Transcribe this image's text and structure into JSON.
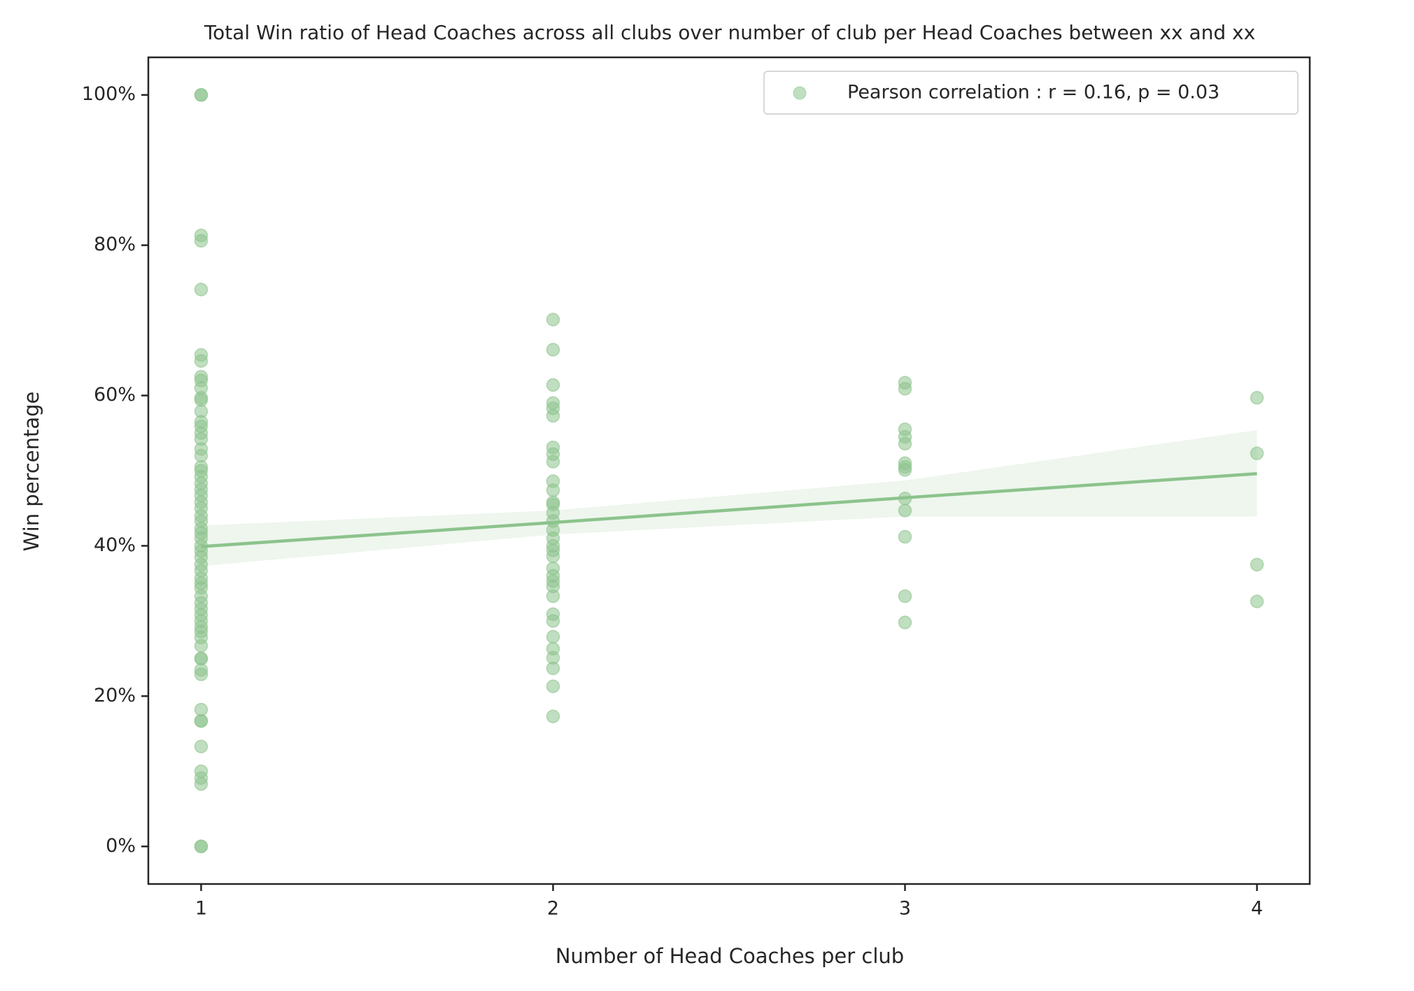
{
  "chart_data": {
    "type": "scatter",
    "title": "Total Win ratio of Head Coaches across all clubs over number of club per Head Coaches between xx and xx",
    "x_label": "Number of Head Coaches per club",
    "y_label": "Win percentage",
    "xlim": [
      0.85,
      4.15
    ],
    "ylim": [
      -5,
      105
    ],
    "xticks": [
      1,
      2,
      3,
      4
    ],
    "yticks": [
      {
        "value": 0,
        "label": "0%"
      },
      {
        "value": 20,
        "label": "20%"
      },
      {
        "value": 40,
        "label": "40%"
      },
      {
        "value": 60,
        "label": "60%"
      },
      {
        "value": 80,
        "label": "80%"
      },
      {
        "value": 100,
        "label": "100%"
      }
    ],
    "grid": false,
    "legend": "upper right",
    "series": [
      {
        "name": "Pearson correlation : r = 0.16, p = 0.03",
        "color": "#8cc38c",
        "x": [
          1,
          1,
          1,
          1,
          1,
          1,
          1,
          1,
          1,
          1,
          1,
          1,
          1,
          1,
          1,
          1,
          1,
          1,
          1,
          1,
          1,
          1,
          1,
          1,
          1,
          1,
          1,
          1,
          1,
          1,
          1,
          1,
          1,
          1,
          1,
          1,
          1,
          1,
          1,
          1,
          1,
          1,
          1,
          1,
          1,
          1,
          1,
          1,
          1,
          1,
          1,
          1,
          1,
          1,
          1,
          1,
          1,
          1,
          1,
          1,
          1,
          1,
          2,
          2,
          2,
          2,
          2,
          2,
          2,
          2,
          2,
          2,
          2,
          2,
          2,
          2,
          2,
          2,
          2,
          2,
          2,
          2,
          2,
          2,
          2,
          2,
          2,
          2,
          2,
          2,
          2,
          2,
          2,
          2,
          2,
          3,
          3,
          3,
          3,
          3,
          3,
          3,
          3,
          3,
          3,
          3,
          3,
          3,
          4,
          4,
          4,
          4
        ],
        "values": [
          100,
          100,
          81.3,
          80.6,
          74.1,
          65.4,
          64.6,
          62.5,
          62,
          61,
          59.7,
          59.4,
          57.9,
          56.5,
          55.9,
          55,
          54.2,
          52.9,
          52,
          50.5,
          50,
          49.2,
          48.3,
          47.5,
          46.7,
          45.8,
          45,
          44,
          43.3,
          42.3,
          41.7,
          41,
          40,
          39.3,
          38.5,
          37.5,
          36.7,
          35.7,
          35,
          34.4,
          33.3,
          32.4,
          31.6,
          30.8,
          30,
          29.2,
          28.6,
          27.8,
          26.7,
          25,
          25,
          23.5,
          22.9,
          18.2,
          16.7,
          16.7,
          13.3,
          10,
          9.1,
          8.3,
          0,
          0,
          70.1,
          66.1,
          61.4,
          59,
          58.3,
          57.3,
          53.1,
          52.2,
          51.2,
          48.6,
          47.4,
          45.8,
          45.5,
          44.4,
          43.3,
          42.1,
          41,
          40,
          39.4,
          38.6,
          37,
          36,
          35.3,
          34.6,
          33.3,
          30.9,
          30,
          27.9,
          26.3,
          25.1,
          23.7,
          21.3,
          17.3,
          61.7,
          60.9,
          55.5,
          54.5,
          53.6,
          51,
          50.5,
          50.1,
          46.3,
          44.7,
          41.2,
          33.3,
          29.8,
          59.7,
          52.3,
          37.5,
          32.6
        ]
      }
    ],
    "regression": {
      "color": "#8cc38c",
      "x": [
        1,
        2,
        3,
        4
      ],
      "values": [
        39.9,
        43.1,
        46.4,
        49.6
      ],
      "ci_upper": [
        42.7,
        44.7,
        48.7,
        55.4
      ],
      "ci_lower": [
        37.3,
        41.5,
        43.9,
        43.9
      ]
    }
  }
}
